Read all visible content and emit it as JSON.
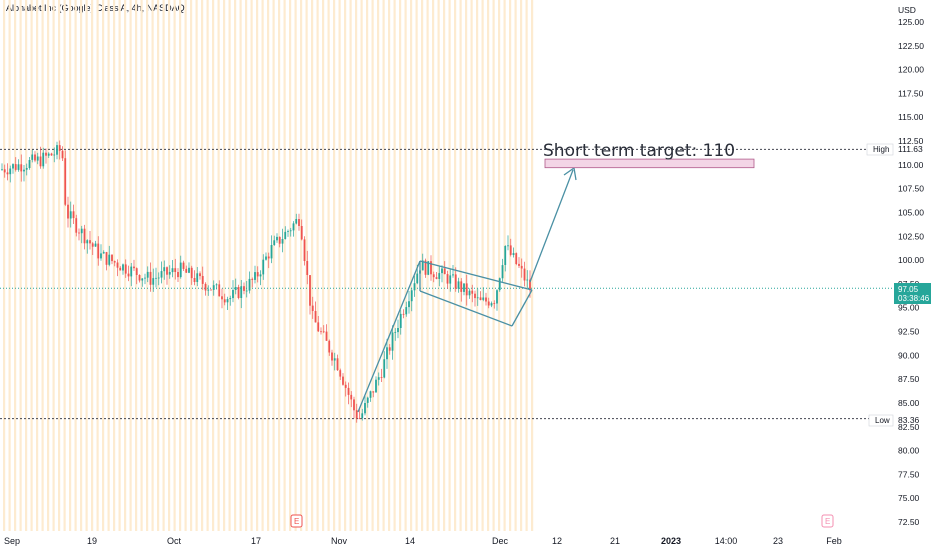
{
  "header": {
    "title": "Alphabet Inc (Google) Class A, 4h, NASDAQ",
    "currency": "USD"
  },
  "price_axis": {
    "ticks": [
      "125.00",
      "122.50",
      "120.00",
      "117.50",
      "115.00",
      "112.50",
      "110.00",
      "107.50",
      "105.00",
      "102.50",
      "100.00",
      "97.50",
      "95.00",
      "92.50",
      "90.00",
      "87.50",
      "85.00",
      "82.50",
      "80.00",
      "77.50",
      "75.00",
      "72.50"
    ],
    "high_label": "High",
    "high_value": "111.63",
    "low_label": "Low",
    "low_value": "83.36",
    "current_price": "97.05",
    "countdown": "03:38:46"
  },
  "time_axis": [
    {
      "label": "Sep",
      "bold": false
    },
    {
      "label": "19",
      "bold": false
    },
    {
      "label": "Oct",
      "bold": false
    },
    {
      "label": "17",
      "bold": false
    },
    {
      "label": "Nov",
      "bold": false
    },
    {
      "label": "14",
      "bold": false
    },
    {
      "label": "Dec",
      "bold": false
    },
    {
      "label": "12",
      "bold": false
    },
    {
      "label": "21",
      "bold": false
    },
    {
      "label": "2023",
      "bold": true
    },
    {
      "label": "14:00",
      "bold": false
    },
    {
      "label": "23",
      "bold": false
    },
    {
      "label": "Feb",
      "bold": false
    }
  ],
  "annotation": {
    "text": "Short term target: 110",
    "target_price": 110
  },
  "earnings_markers": [
    "E",
    "E"
  ],
  "colors": {
    "up": "#26a69a",
    "down": "#ef5350",
    "zone": "#f3d5e6",
    "zone_border": "#b05a8a",
    "arrow": "#4a90a4",
    "current": "#26a69a",
    "session": "#fdebd0"
  },
  "chart_data": {
    "type": "candlestick",
    "title": "Alphabet Inc (Google) Class A, 4h, NASDAQ",
    "ylim": [
      72.5,
      125
    ],
    "high": 111.63,
    "low": 83.36,
    "last": 97.05,
    "target": 110,
    "keyframes": [
      {
        "x": "Sep",
        "y": 109.5
      },
      {
        "x": "Sep late",
        "y": 110.5
      },
      {
        "x": "Sep 28",
        "y": 111.6
      },
      {
        "x": "Sep 29",
        "y": 105
      },
      {
        "x": "Oct",
        "y": 100.5
      },
      {
        "x": "Oct 6",
        "y": 98
      },
      {
        "x": "Oct 10",
        "y": 99
      },
      {
        "x": "Oct 14",
        "y": 96
      },
      {
        "x": "Oct 17",
        "y": 98
      },
      {
        "x": "Oct 20",
        "y": 101
      },
      {
        "x": "Oct 24",
        "y": 104.5
      },
      {
        "x": "Oct 26",
        "y": 94
      },
      {
        "x": "Oct 28",
        "y": 92.5
      },
      {
        "x": "Nov",
        "y": 89
      },
      {
        "x": "Nov 3",
        "y": 84
      },
      {
        "x": "Nov 4",
        "y": 83.4
      },
      {
        "x": "Nov 8",
        "y": 88
      },
      {
        "x": "Nov 10",
        "y": 94
      },
      {
        "x": "Nov 14",
        "y": 99.5
      },
      {
        "x": "Nov 17",
        "y": 98
      },
      {
        "x": "Nov 22",
        "y": 95.5
      },
      {
        "x": "Nov 28",
        "y": 96
      },
      {
        "x": "Dec",
        "y": 101.5
      },
      {
        "x": "Dec 5",
        "y": 99
      },
      {
        "x": "Dec 7",
        "y": 97
      }
    ]
  }
}
